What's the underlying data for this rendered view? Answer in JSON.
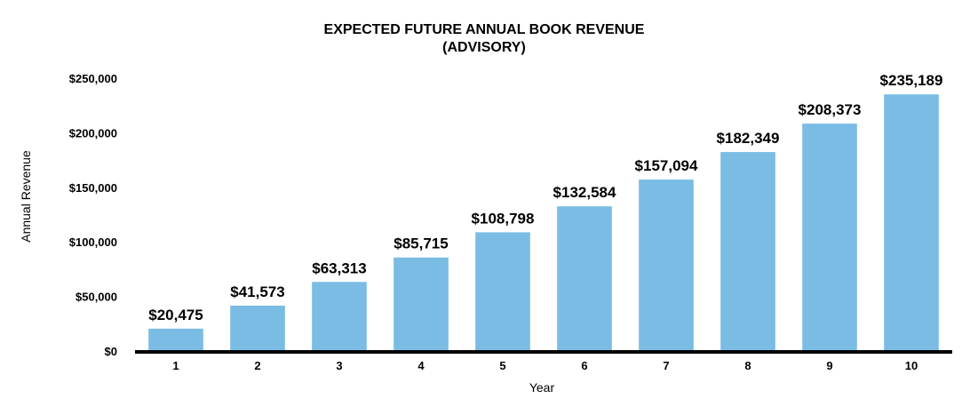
{
  "chart_data": {
    "type": "bar",
    "title_lines": [
      "EXPECTED FUTURE ANNUAL  BOOK REVENUE",
      "(ADVISORY)"
    ],
    "xlabel": "Year",
    "ylabel": "Annual Revenue",
    "categories": [
      "1",
      "2",
      "3",
      "4",
      "5",
      "6",
      "7",
      "8",
      "9",
      "10"
    ],
    "values": [
      20475,
      41573,
      63313,
      85715,
      108798,
      132584,
      157094,
      182349,
      208373,
      235189
    ],
    "value_labels": [
      "$20,475",
      "$41,573",
      "$63,313",
      "$85,715",
      "$108,798",
      "$132,584",
      "$157,094",
      "$182,349",
      "$208,373",
      "$235,189"
    ],
    "ylim": [
      0,
      250000
    ],
    "yticks": [
      0,
      50000,
      100000,
      150000,
      200000,
      250000
    ],
    "ytick_labels": [
      "$0",
      "$50,000",
      "$100,000",
      "$150,000",
      "$200,000",
      "$250,000"
    ],
    "grid": false,
    "legend": "none",
    "bar_color": "#7ABCE4",
    "axis_color": "#000000"
  }
}
